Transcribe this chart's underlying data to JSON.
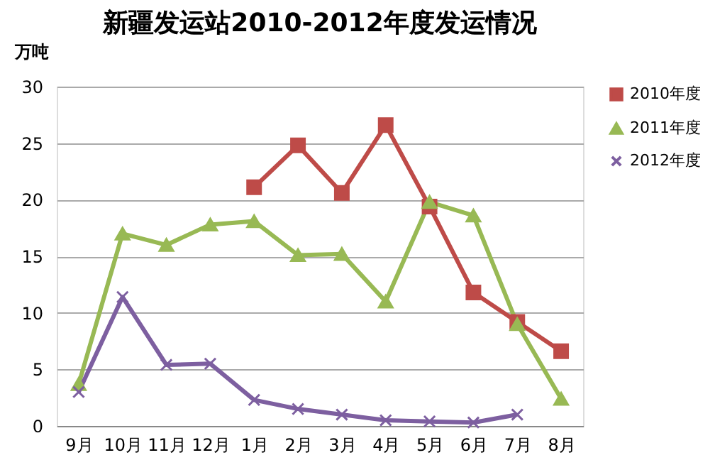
{
  "chart_data": {
    "type": "line",
    "title": "新疆发运站2010-2012年度发运情况",
    "ylabel": "万吨",
    "categories": [
      "9月",
      "10月",
      "11月",
      "12月",
      "1月",
      "2月",
      "3月",
      "4月",
      "5月",
      "6月",
      "7月",
      "8月"
    ],
    "series": [
      {
        "name": "2010年度",
        "color": "#be4b48",
        "marker": "square",
        "values": [
          null,
          null,
          null,
          null,
          21.1,
          24.8,
          20.6,
          26.6,
          19.4,
          11.8,
          9.2,
          6.6
        ]
      },
      {
        "name": "2011年度",
        "color": "#98b954",
        "marker": "triangle",
        "values": [
          3.7,
          17.0,
          16.0,
          17.8,
          18.1,
          15.1,
          15.2,
          11.0,
          19.8,
          18.6,
          9.0,
          2.4
        ]
      },
      {
        "name": "2012年度",
        "color": "#7d5fa0",
        "marker": "cross",
        "values": [
          3.0,
          11.4,
          5.4,
          5.5,
          2.3,
          1.5,
          1.0,
          0.5,
          0.4,
          0.3,
          1.0,
          null
        ]
      }
    ],
    "ylim": [
      0,
      30
    ],
    "yticks": [
      0,
      5,
      10,
      15,
      20,
      25,
      30
    ],
    "grid": "y",
    "legend": "top right",
    "line_style": "solid"
  }
}
